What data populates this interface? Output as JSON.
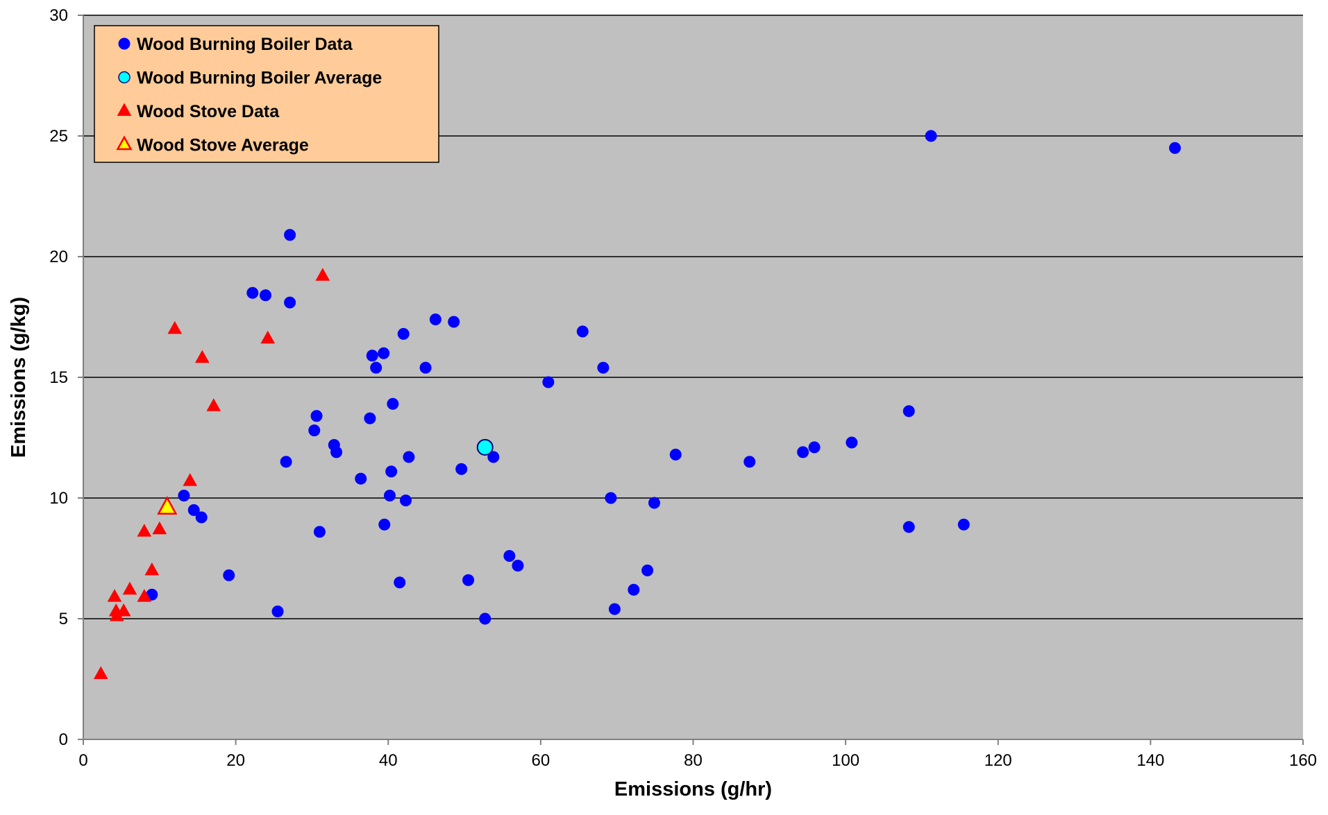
{
  "chart_data": {
    "type": "scatter",
    "xlabel": "Emissions (g/hr)",
    "ylabel": "Emissions (g/kg)",
    "xlim": [
      0,
      160
    ],
    "ylim": [
      0,
      30
    ],
    "x_ticks": [
      0,
      20,
      40,
      60,
      80,
      100,
      120,
      140,
      160
    ],
    "y_ticks": [
      0,
      5,
      10,
      15,
      20,
      25,
      30
    ],
    "grid": "horizontal major gridlines",
    "plot_background": "#C0C0C0",
    "legend_position": "top-left",
    "legend_background": "#FFCC99",
    "series": [
      {
        "name": "Wood Burning Boiler Data",
        "marker": "circle",
        "color": "#0000FF",
        "points": [
          [
            111.2,
            25.0
          ],
          [
            143.2,
            24.5
          ],
          [
            27.1,
            20.9
          ],
          [
            22.2,
            18.5
          ],
          [
            23.9,
            18.4
          ],
          [
            27.1,
            18.1
          ],
          [
            46.2,
            17.4
          ],
          [
            48.6,
            17.3
          ],
          [
            42.0,
            16.8
          ],
          [
            65.5,
            16.9
          ],
          [
            37.9,
            15.9
          ],
          [
            39.4,
            16.0
          ],
          [
            38.4,
            15.4
          ],
          [
            44.9,
            15.4
          ],
          [
            68.2,
            15.4
          ],
          [
            61.0,
            14.8
          ],
          [
            40.6,
            13.9
          ],
          [
            108.3,
            13.6
          ],
          [
            30.6,
            13.4
          ],
          [
            37.6,
            13.3
          ],
          [
            30.3,
            12.8
          ],
          [
            32.9,
            12.2
          ],
          [
            33.2,
            11.9
          ],
          [
            94.4,
            11.9
          ],
          [
            95.9,
            12.1
          ],
          [
            100.8,
            12.3
          ],
          [
            42.7,
            11.7
          ],
          [
            53.8,
            11.7
          ],
          [
            77.7,
            11.8
          ],
          [
            87.4,
            11.5
          ],
          [
            26.6,
            11.5
          ],
          [
            40.4,
            11.1
          ],
          [
            49.6,
            11.2
          ],
          [
            36.4,
            10.8
          ],
          [
            13.2,
            10.1
          ],
          [
            40.2,
            10.1
          ],
          [
            69.2,
            10.0
          ],
          [
            42.3,
            9.9
          ],
          [
            74.9,
            9.8
          ],
          [
            14.5,
            9.5
          ],
          [
            15.5,
            9.2
          ],
          [
            39.5,
            8.9
          ],
          [
            108.3,
            8.8
          ],
          [
            115.5,
            8.9
          ],
          [
            31.0,
            8.6
          ],
          [
            55.9,
            7.6
          ],
          [
            57.0,
            7.2
          ],
          [
            74.0,
            7.0
          ],
          [
            19.1,
            6.8
          ],
          [
            50.5,
            6.6
          ],
          [
            41.5,
            6.5
          ],
          [
            72.2,
            6.2
          ],
          [
            9.0,
            6.0
          ],
          [
            69.7,
            5.4
          ],
          [
            25.5,
            5.3
          ],
          [
            52.7,
            5.0
          ]
        ]
      },
      {
        "name": "Wood Burning Boiler Average",
        "marker": "circle",
        "color": "#00FFFF",
        "points": [
          [
            52.7,
            12.1
          ]
        ]
      },
      {
        "name": "Wood Stove Data",
        "marker": "triangle",
        "color": "#FF0000",
        "points": [
          [
            31.4,
            19.2
          ],
          [
            12.0,
            17.0
          ],
          [
            24.2,
            16.6
          ],
          [
            15.6,
            15.8
          ],
          [
            17.1,
            13.8
          ],
          [
            14.0,
            10.7
          ],
          [
            8.0,
            8.6
          ],
          [
            10.0,
            8.7
          ],
          [
            9.0,
            7.0
          ],
          [
            6.1,
            6.2
          ],
          [
            4.1,
            5.9
          ],
          [
            8.0,
            5.9
          ],
          [
            4.3,
            5.3
          ],
          [
            5.3,
            5.3
          ],
          [
            4.4,
            5.1
          ],
          [
            2.3,
            2.7
          ]
        ]
      },
      {
        "name": "Wood Stove Average",
        "marker": "triangle",
        "color": "#FFFF00",
        "stroke": "#FF0000",
        "points": [
          [
            11.0,
            9.6
          ]
        ]
      }
    ]
  }
}
